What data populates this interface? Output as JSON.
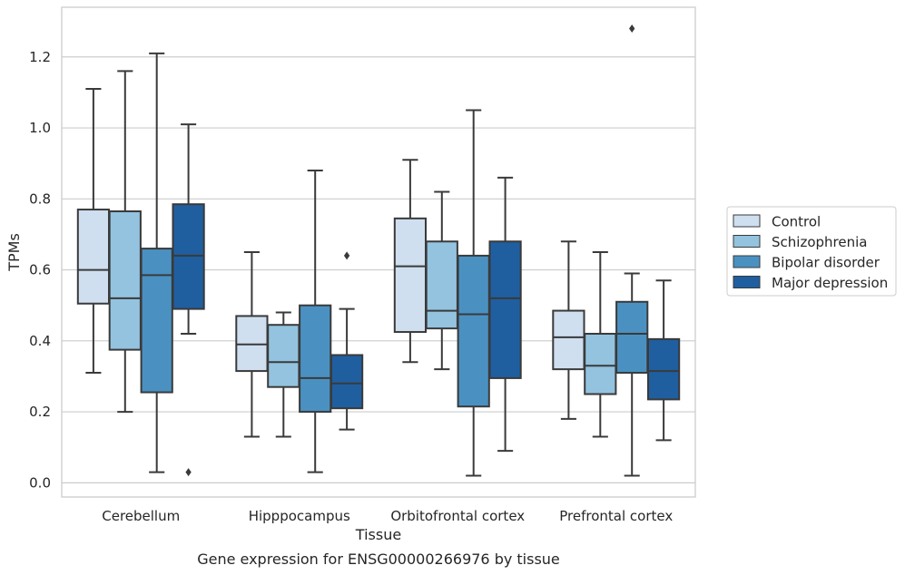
{
  "chart_data": {
    "type": "box",
    "title": "",
    "caption": "Gene expression for ENSG00000266976 by tissue",
    "xlabel": "Tissue",
    "ylabel": "TPMs",
    "ylim": [
      -0.04,
      1.34
    ],
    "yticks": [
      "0.0",
      "0.2",
      "0.4",
      "0.6",
      "0.8",
      "1.0",
      "1.2"
    ],
    "grid": "horizontal",
    "legend_position": "center-right",
    "categories": [
      "Cerebellum",
      "Hipppocampus",
      "Orbitofrontal cortex",
      "Prefrontal cortex"
    ],
    "series": [
      {
        "name": "Control",
        "color": "#cfdff0",
        "boxes": [
          {
            "whislo": 0.31,
            "q1": 0.505,
            "med": 0.6,
            "q3": 0.77,
            "whishi": 1.11,
            "fliers": []
          },
          {
            "whislo": 0.13,
            "q1": 0.315,
            "med": 0.39,
            "q3": 0.47,
            "whishi": 0.65,
            "fliers": []
          },
          {
            "whislo": 0.34,
            "q1": 0.425,
            "med": 0.61,
            "q3": 0.745,
            "whishi": 0.91,
            "fliers": []
          },
          {
            "whislo": 0.18,
            "q1": 0.32,
            "med": 0.41,
            "q3": 0.485,
            "whishi": 0.68,
            "fliers": []
          }
        ]
      },
      {
        "name": "Schizophrenia",
        "color": "#93c3df",
        "boxes": [
          {
            "whislo": 0.2,
            "q1": 0.375,
            "med": 0.52,
            "q3": 0.765,
            "whishi": 1.16,
            "fliers": []
          },
          {
            "whislo": 0.13,
            "q1": 0.27,
            "med": 0.34,
            "q3": 0.445,
            "whishi": 0.48,
            "fliers": []
          },
          {
            "whislo": 0.32,
            "q1": 0.435,
            "med": 0.485,
            "q3": 0.68,
            "whishi": 0.82,
            "fliers": []
          },
          {
            "whislo": 0.13,
            "q1": 0.25,
            "med": 0.33,
            "q3": 0.42,
            "whishi": 0.65,
            "fliers": []
          }
        ]
      },
      {
        "name": "Bipolar disorder",
        "color": "#4a91c2",
        "boxes": [
          {
            "whislo": 0.03,
            "q1": 0.255,
            "med": 0.585,
            "q3": 0.66,
            "whishi": 1.21,
            "fliers": []
          },
          {
            "whislo": 0.03,
            "q1": 0.2,
            "med": 0.295,
            "q3": 0.5,
            "whishi": 0.88,
            "fliers": []
          },
          {
            "whislo": 0.02,
            "q1": 0.215,
            "med": 0.475,
            "q3": 0.64,
            "whishi": 1.05,
            "fliers": []
          },
          {
            "whislo": 0.02,
            "q1": 0.31,
            "med": 0.42,
            "q3": 0.51,
            "whishi": 0.59,
            "fliers": [
              1.28
            ]
          }
        ]
      },
      {
        "name": "Major depression",
        "color": "#1f5fa0",
        "boxes": [
          {
            "whislo": 0.42,
            "q1": 0.49,
            "med": 0.64,
            "q3": 0.785,
            "whishi": 1.01,
            "fliers": [
              0.03
            ]
          },
          {
            "whislo": 0.15,
            "q1": 0.21,
            "med": 0.28,
            "q3": 0.36,
            "whishi": 0.49,
            "fliers": [
              0.64
            ]
          },
          {
            "whislo": 0.09,
            "q1": 0.295,
            "med": 0.52,
            "q3": 0.68,
            "whishi": 0.86,
            "fliers": []
          },
          {
            "whislo": 0.12,
            "q1": 0.235,
            "med": 0.315,
            "q3": 0.405,
            "whishi": 0.57,
            "fliers": []
          }
        ]
      }
    ]
  }
}
